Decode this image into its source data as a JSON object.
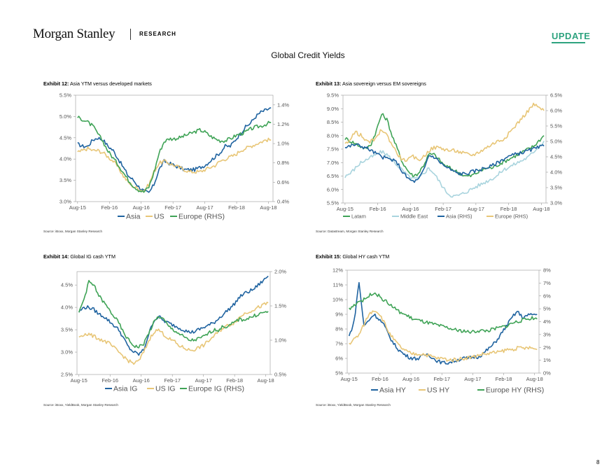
{
  "header": {
    "logo": "Morgan Stanley",
    "section": "RESEARCH",
    "badge": "UPDATE",
    "page_title": "Global Credit Yields",
    "page_number": "8"
  },
  "colors": {
    "navy": "#1f63a0",
    "sand": "#e8c677",
    "green": "#3fa356",
    "lightblue": "#a9d4de",
    "accent": "#2ea37f"
  },
  "exhibits": [
    {
      "label": "Exhibit 12:",
      "title": "Asia YTM versus developed markets",
      "source": "Source: iBoxx, Morgan Stanley Research"
    },
    {
      "label": "Exhibit 13:",
      "title": "Asia sovereign versus EM sovereigns",
      "source": "Source: Datastream, Morgan Stanley Research"
    },
    {
      "label": "Exhibit 14:",
      "title": "Global IG cash YTM",
      "source": "Source: iBoxx, YieldBook, Morgan Stanley Research"
    },
    {
      "label": "Exhibit 15:",
      "title": "Global HY cash YTM",
      "source": "Source: iBoxx, YieldBook, Morgan Stanley Research"
    }
  ],
  "chart_data": [
    {
      "type": "line",
      "title": "Asia YTM versus developed markets",
      "x_ticks": [
        "Aug-15",
        "Feb-16",
        "Aug-16",
        "Feb-17",
        "Aug-17",
        "Feb-18",
        "Aug-18"
      ],
      "y_left": {
        "ticks": [
          "3.0%",
          "3.5%",
          "4.0%",
          "4.5%",
          "5.0%",
          "5.5%"
        ],
        "range": [
          3.0,
          5.5
        ]
      },
      "y_right": {
        "ticks": [
          "0.4%",
          "0.6%",
          "0.8%",
          "1.0%",
          "1.2%",
          "1.4%"
        ],
        "range": [
          0.4,
          1.5
        ]
      },
      "legend_position": "bottom",
      "series": [
        {
          "name": "Asia",
          "color": "navy",
          "axis": "left",
          "values": [
            4.35,
            4.3,
            4.3,
            4.45,
            4.5,
            4.45,
            4.3,
            4.2,
            4.0,
            3.8,
            3.6,
            3.5,
            3.35,
            3.25,
            3.2,
            3.4,
            3.75,
            3.95,
            3.9,
            3.85,
            3.8,
            3.75,
            3.75,
            3.75,
            3.8,
            3.85,
            3.95,
            4.05,
            4.15,
            4.3,
            4.3,
            4.45,
            4.6,
            4.75,
            4.85,
            5.0,
            5.1,
            5.15,
            5.2
          ]
        },
        {
          "name": "US",
          "color": "sand",
          "axis": "left",
          "values": [
            4.15,
            4.2,
            4.25,
            4.2,
            4.2,
            4.15,
            4.05,
            3.95,
            3.8,
            3.6,
            3.45,
            3.35,
            3.3,
            3.25,
            3.4,
            3.7,
            3.9,
            3.95,
            3.9,
            3.85,
            3.8,
            3.75,
            3.7,
            3.7,
            3.7,
            3.75,
            3.8,
            3.85,
            3.95,
            4.0,
            4.05,
            4.1,
            4.2,
            4.25,
            4.3,
            4.35,
            4.4,
            4.45,
            4.45
          ]
        },
        {
          "name": "Europe (RHS)",
          "color": "green",
          "axis": "right",
          "values": [
            1.27,
            1.25,
            1.22,
            1.18,
            1.1,
            1.02,
            0.92,
            0.85,
            0.78,
            0.7,
            0.62,
            0.56,
            0.52,
            0.5,
            0.55,
            0.7,
            0.9,
            1.02,
            1.05,
            1.05,
            1.06,
            1.08,
            1.1,
            1.12,
            1.14,
            1.12,
            1.08,
            1.05,
            1.03,
            1.03,
            1.05,
            1.08,
            1.1,
            1.12,
            1.15,
            1.17,
            1.18,
            1.2,
            1.22
          ]
        }
      ]
    },
    {
      "type": "line",
      "title": "Asia sovereign versus EM sovereigns",
      "x_ticks": [
        "Aug-15",
        "Feb-16",
        "Aug-16",
        "Feb-17",
        "Aug-17",
        "Feb-18",
        "Aug-18"
      ],
      "y_left": {
        "ticks": [
          "5.5%",
          "6.0%",
          "6.5%",
          "7.0%",
          "7.5%",
          "8.0%",
          "8.5%",
          "9.0%",
          "9.5%"
        ],
        "range": [
          5.5,
          9.5
        ]
      },
      "y_right": {
        "ticks": [
          "3.0%",
          "3.5%",
          "4.0%",
          "4.5%",
          "5.0%",
          "5.5%",
          "6.0%",
          "6.5%"
        ],
        "range": [
          3.0,
          6.5
        ]
      },
      "legend_position": "bottom",
      "series": [
        {
          "name": "Latam",
          "color": "green",
          "axis": "left",
          "values": [
            7.9,
            7.8,
            7.7,
            7.6,
            7.5,
            7.7,
            8.2,
            8.8,
            8.6,
            8.0,
            7.5,
            7.0,
            6.7,
            6.5,
            6.6,
            6.9,
            7.3,
            7.3,
            7.1,
            6.9,
            6.8,
            6.7,
            6.6,
            6.5,
            6.5,
            6.6,
            6.7,
            6.8,
            6.8,
            6.9,
            7.0,
            7.1,
            7.2,
            7.3,
            7.4,
            7.5,
            7.6,
            7.8,
            8.0
          ]
        },
        {
          "name": "Middle East",
          "color": "lightblue",
          "axis": "left",
          "values": [
            6.5,
            6.6,
            6.8,
            7.0,
            7.1,
            7.2,
            7.3,
            7.4,
            7.3,
            7.1,
            6.9,
            6.7,
            6.5,
            6.4,
            6.4,
            6.6,
            6.8,
            6.6,
            6.3,
            6.0,
            5.8,
            5.75,
            5.8,
            5.9,
            6.0,
            6.1,
            6.2,
            6.3,
            6.4,
            6.5,
            6.7,
            6.8,
            6.9,
            7.0,
            7.1,
            7.2,
            7.4,
            7.6,
            7.8
          ]
        },
        {
          "name": "Asia (RHS)",
          "color": "navy",
          "axis": "right",
          "values": [
            4.8,
            4.85,
            4.9,
            4.85,
            4.8,
            4.7,
            4.6,
            4.5,
            4.45,
            4.4,
            4.3,
            4.0,
            3.8,
            3.7,
            3.75,
            4.05,
            4.55,
            4.5,
            4.35,
            4.2,
            4.1,
            4.0,
            3.95,
            3.95,
            4.0,
            4.05,
            4.1,
            4.15,
            4.2,
            4.3,
            4.4,
            4.5,
            4.55,
            4.6,
            4.65,
            4.7,
            4.75,
            4.8,
            4.85
          ]
        },
        {
          "name": "Europe (RHS)",
          "color": "sand",
          "axis": "right",
          "values": [
            4.9,
            5.1,
            5.3,
            5.2,
            5.0,
            5.0,
            5.1,
            5.4,
            5.2,
            4.9,
            4.6,
            4.4,
            4.4,
            4.5,
            4.4,
            4.5,
            4.7,
            4.8,
            4.8,
            4.75,
            4.7,
            4.7,
            4.65,
            4.6,
            4.55,
            4.6,
            4.7,
            4.8,
            4.9,
            5.0,
            5.05,
            5.2,
            5.4,
            5.6,
            5.8,
            6.0,
            6.2,
            6.1,
            6.0
          ]
        }
      ]
    },
    {
      "type": "line",
      "title": "Global IG cash YTM",
      "x_ticks": [
        "Aug-15",
        "Feb-16",
        "Aug-16",
        "Feb-17",
        "Aug-17",
        "Feb-18",
        "Aug-18"
      ],
      "y_left": {
        "ticks": [
          "2.5%",
          "3.0%",
          "3.5%",
          "4.0%",
          "4.5%"
        ],
        "range": [
          2.5,
          4.8
        ]
      },
      "y_right": {
        "ticks": [
          "0.5%",
          "1.0%",
          "1.5%",
          "2.0%"
        ],
        "range": [
          0.5,
          2.0
        ]
      },
      "legend_position": "bottom",
      "series": [
        {
          "name": "Asia IG",
          "color": "navy",
          "axis": "left",
          "values": [
            3.9,
            4.0,
            4.0,
            3.95,
            3.85,
            3.8,
            3.7,
            3.6,
            3.5,
            3.3,
            3.1,
            3.0,
            2.95,
            3.05,
            3.4,
            3.7,
            3.8,
            3.7,
            3.65,
            3.6,
            3.55,
            3.5,
            3.45,
            3.45,
            3.5,
            3.55,
            3.6,
            3.65,
            3.75,
            3.85,
            3.95,
            4.05,
            4.2,
            4.3,
            4.35,
            4.4,
            4.5,
            4.6,
            4.7
          ]
        },
        {
          "name": "US IG",
          "color": "sand",
          "axis": "left",
          "values": [
            3.35,
            3.4,
            3.4,
            3.35,
            3.3,
            3.25,
            3.2,
            3.1,
            3.0,
            2.9,
            2.8,
            2.75,
            2.8,
            3.0,
            3.25,
            3.45,
            3.5,
            3.4,
            3.3,
            3.25,
            3.15,
            3.1,
            3.05,
            3.05,
            3.1,
            3.15,
            3.25,
            3.35,
            3.45,
            3.55,
            3.6,
            3.65,
            3.75,
            3.85,
            3.9,
            3.95,
            4.0,
            4.05,
            4.1
          ]
        },
        {
          "name": "Europe IG (RHS)",
          "color": "green",
          "axis": "right",
          "values": [
            1.4,
            1.6,
            1.85,
            1.8,
            1.65,
            1.55,
            1.45,
            1.35,
            1.25,
            1.1,
            1.0,
            0.92,
            0.9,
            0.95,
            1.1,
            1.25,
            1.35,
            1.3,
            1.2,
            1.15,
            1.1,
            1.05,
            1.0,
            1.0,
            1.02,
            1.05,
            1.1,
            1.15,
            1.15,
            1.2,
            1.2,
            1.25,
            1.3,
            1.3,
            1.32,
            1.35,
            1.38,
            1.4,
            1.42
          ]
        }
      ]
    },
    {
      "type": "line",
      "title": "Global HY cash YTM",
      "x_ticks": [
        "Aug-15",
        "Feb-16",
        "Aug-16",
        "Feb-17",
        "Aug-17",
        "Feb-18",
        "Aug-18"
      ],
      "y_left": {
        "ticks": [
          "5%",
          "6%",
          "7%",
          "8%",
          "9%",
          "10%",
          "11%",
          "12%"
        ],
        "range": [
          5,
          12
        ]
      },
      "y_right": {
        "ticks": [
          "0%",
          "1%",
          "2%",
          "3%",
          "4%",
          "5%",
          "6%",
          "7%",
          "8%"
        ],
        "range": [
          0,
          8
        ]
      },
      "legend_position": "bottom",
      "series": [
        {
          "name": "Asia HY",
          "color": "navy",
          "axis": "left",
          "values": [
            7.5,
            8.5,
            11.2,
            8.2,
            8.6,
            9.0,
            8.7,
            8.3,
            7.6,
            7.0,
            6.6,
            6.3,
            6.1,
            6.0,
            6.0,
            6.2,
            6.3,
            6.0,
            5.8,
            5.7,
            5.7,
            5.8,
            5.9,
            6.0,
            6.0,
            6.1,
            6.1,
            6.3,
            6.6,
            6.9,
            7.3,
            7.8,
            8.3,
            8.8,
            9.2,
            8.8,
            8.9,
            9.0,
            9.0
          ]
        },
        {
          "name": "US HY",
          "color": "sand",
          "axis": "left",
          "values": [
            7.0,
            7.3,
            7.6,
            8.3,
            9.0,
            9.3,
            9.1,
            8.5,
            7.8,
            7.3,
            6.9,
            6.6,
            6.4,
            6.3,
            6.3,
            6.3,
            6.2,
            6.1,
            6.0,
            6.0,
            5.9,
            5.9,
            5.95,
            6.0,
            6.05,
            6.1,
            6.2,
            6.3,
            6.3,
            6.4,
            6.4,
            6.5,
            6.6,
            6.6,
            6.7,
            6.7,
            6.7,
            6.7,
            6.6
          ]
        },
        {
          "name": "Europe HY (RHS)",
          "color": "green",
          "axis": "right",
          "values": [
            5.0,
            5.3,
            5.6,
            5.7,
            6.0,
            6.3,
            6.0,
            5.7,
            5.4,
            5.1,
            4.8,
            4.6,
            4.4,
            4.2,
            4.1,
            4.0,
            3.9,
            3.8,
            3.7,
            3.6,
            3.5,
            3.4,
            3.3,
            3.3,
            3.2,
            3.2,
            3.3,
            3.3,
            3.3,
            3.4,
            3.5,
            3.6,
            3.7,
            3.9,
            4.0,
            4.1,
            4.2,
            4.3,
            4.2
          ]
        }
      ]
    }
  ]
}
